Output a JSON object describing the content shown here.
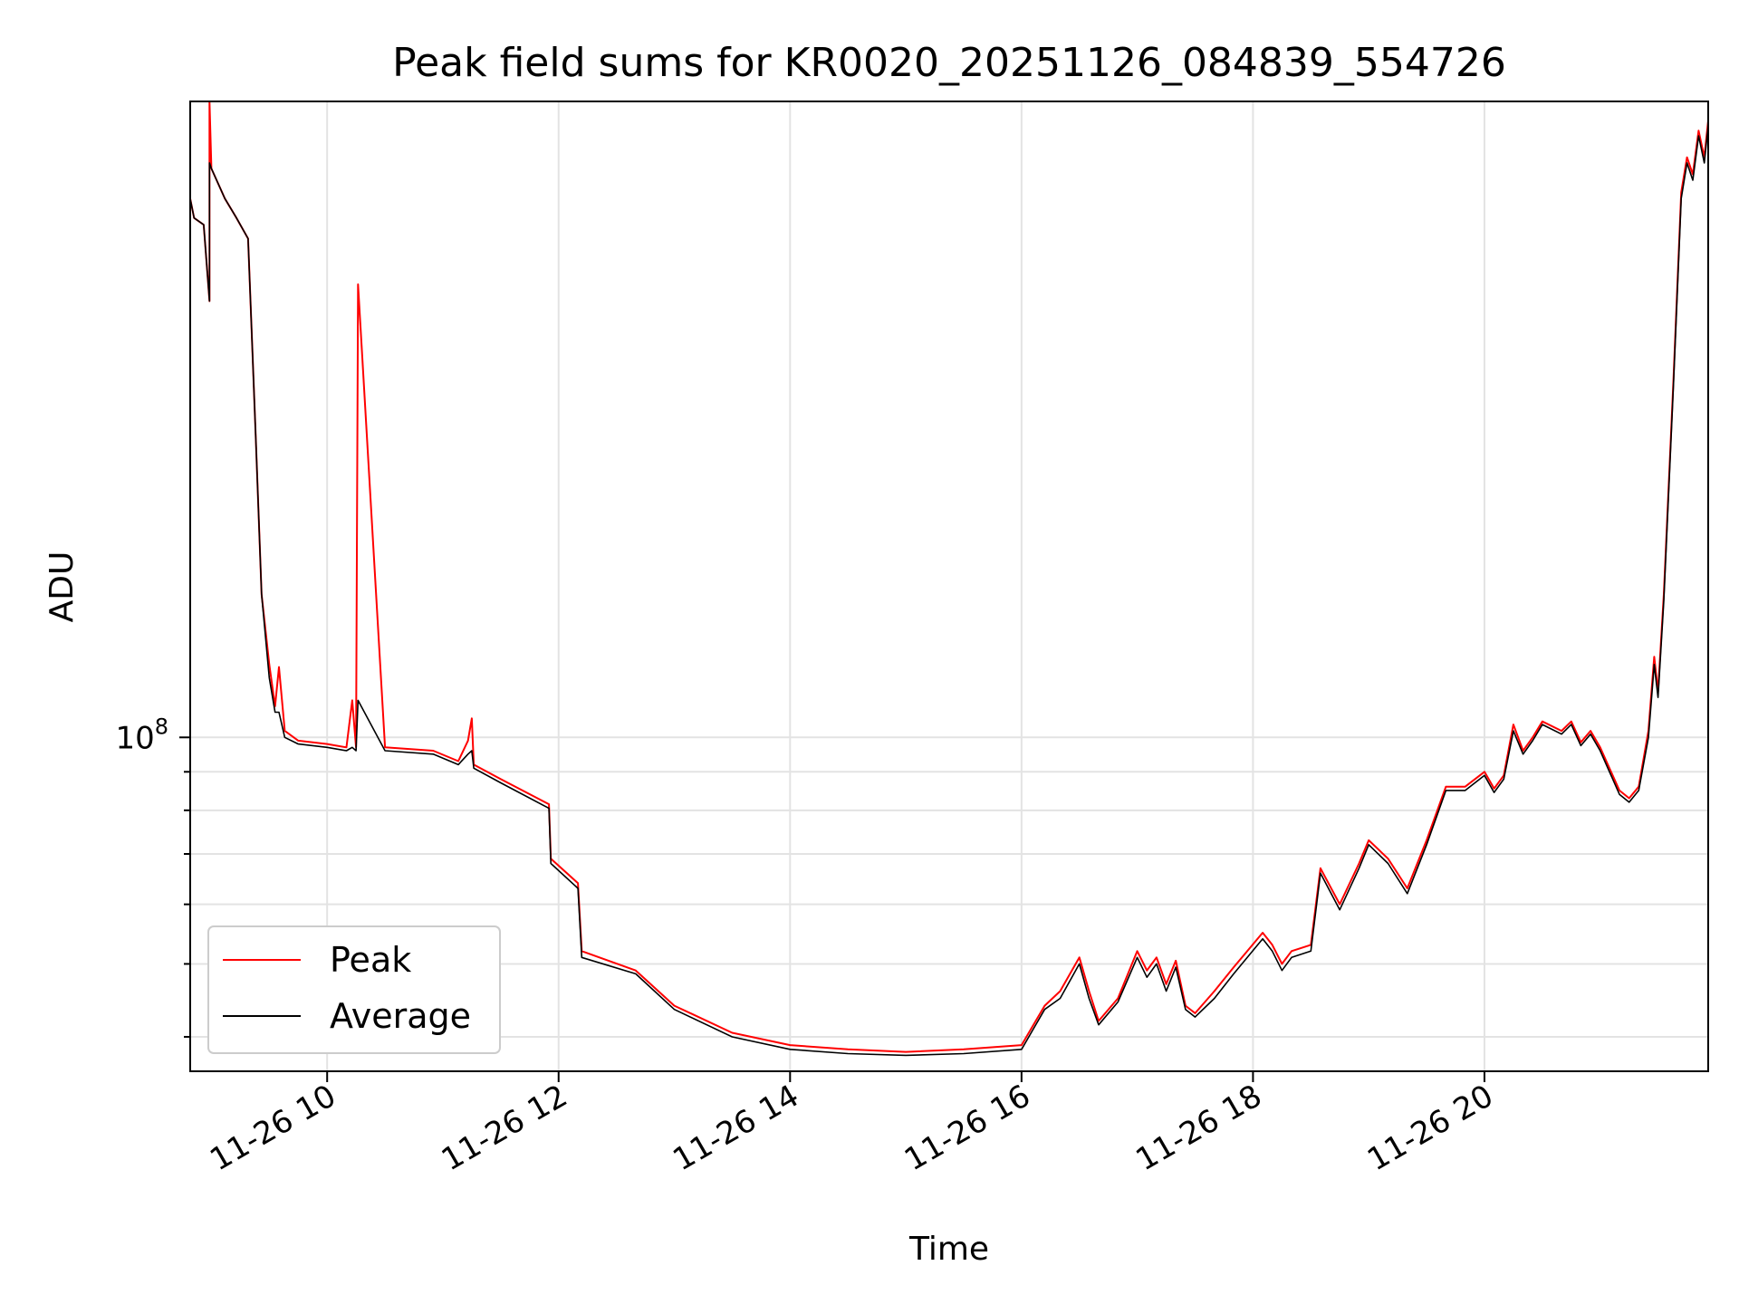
{
  "chart_data": {
    "type": "line",
    "title": "Peak field sums for KR0020_20251126_084839_554726",
    "xlabel": "Time",
    "ylabel": "ADU",
    "y_scale": "log",
    "x_range": [
      "2025-11-26 08:49",
      "2025-11-26 21:56"
    ],
    "y_range": [
      36000000,
      700000000
    ],
    "grid": true,
    "legend_position": "lower-left",
    "x_ticks": [
      "11-26 10",
      "11-26 12",
      "11-26 14",
      "11-26 16",
      "11-26 18",
      "11-26 20"
    ],
    "x_tick_times": [
      "2025-11-26 10:00",
      "2025-11-26 12:00",
      "2025-11-26 14:00",
      "2025-11-26 16:00",
      "2025-11-26 18:00",
      "2025-11-26 20:00"
    ],
    "y_ticks_major": [
      100000000
    ],
    "y_tick_labels": {
      "base": "10",
      "exponent": "8"
    },
    "y_ticks_minor": [
      40000000,
      50000000,
      60000000,
      70000000,
      80000000,
      90000000
    ],
    "series": [
      {
        "name": "Peak",
        "color": "#ff0000",
        "x": [
          "2025-11-26 08:49",
          "2025-11-26 08:51",
          "2025-11-26 08:56",
          "2025-11-26 08:59",
          "2025-11-26 08:59",
          "2025-11-26 09:00",
          "2025-11-26 09:07",
          "2025-11-26 09:13",
          "2025-11-26 09:19",
          "2025-11-26 09:23",
          "2025-11-26 09:26",
          "2025-11-26 09:30",
          "2025-11-26 09:33",
          "2025-11-26 09:35",
          "2025-11-26 09:38",
          "2025-11-26 09:45",
          "2025-11-26 10:00",
          "2025-11-26 10:10",
          "2025-11-26 10:13",
          "2025-11-26 10:15",
          "2025-11-26 10:16",
          "2025-11-26 10:30",
          "2025-11-26 10:55",
          "2025-11-26 11:08",
          "2025-11-26 11:13",
          "2025-11-26 11:15",
          "2025-11-26 11:16",
          "2025-11-26 11:30",
          "2025-11-26 11:55",
          "2025-11-26 11:56",
          "2025-11-26 12:10",
          "2025-11-26 12:12",
          "2025-11-26 12:40",
          "2025-11-26 13:00",
          "2025-11-26 13:30",
          "2025-11-26 14:00",
          "2025-11-26 14:30",
          "2025-11-26 15:00",
          "2025-11-26 15:30",
          "2025-11-26 16:00",
          "2025-11-26 16:12",
          "2025-11-26 16:20",
          "2025-11-26 16:30",
          "2025-11-26 16:35",
          "2025-11-26 16:40",
          "2025-11-26 16:50",
          "2025-11-26 17:00",
          "2025-11-26 17:05",
          "2025-11-26 17:10",
          "2025-11-26 17:15",
          "2025-11-26 17:20",
          "2025-11-26 17:25",
          "2025-11-26 17:30",
          "2025-11-26 17:40",
          "2025-11-26 17:50",
          "2025-11-26 18:05",
          "2025-11-26 18:10",
          "2025-11-26 18:15",
          "2025-11-26 18:20",
          "2025-11-26 18:30",
          "2025-11-26 18:35",
          "2025-11-26 18:45",
          "2025-11-26 18:55",
          "2025-11-26 19:00",
          "2025-11-26 19:10",
          "2025-11-26 19:20",
          "2025-11-26 19:30",
          "2025-11-26 19:40",
          "2025-11-26 19:50",
          "2025-11-26 20:00",
          "2025-11-26 20:05",
          "2025-11-26 20:10",
          "2025-11-26 20:15",
          "2025-11-26 20:20",
          "2025-11-26 20:25",
          "2025-11-26 20:30",
          "2025-11-26 20:40",
          "2025-11-26 20:45",
          "2025-11-26 20:50",
          "2025-11-26 20:55",
          "2025-11-26 21:00",
          "2025-11-26 21:10",
          "2025-11-26 21:15",
          "2025-11-26 21:20",
          "2025-11-26 21:25",
          "2025-11-26 21:28",
          "2025-11-26 21:30",
          "2025-11-26 21:33",
          "2025-11-26 21:38",
          "2025-11-26 21:42",
          "2025-11-26 21:45",
          "2025-11-26 21:48",
          "2025-11-26 21:51",
          "2025-11-26 21:54",
          "2025-11-26 21:56"
        ],
        "y": [
          520000000.0,
          490000000.0,
          480000000.0,
          380000000.0,
          700000000.0,
          570000000.0,
          520000000.0,
          490000000.0,
          460000000.0,
          250000000.0,
          155000000.0,
          125000000.0,
          110000000.0,
          124000000.0,
          102000000.0,
          99000000.0,
          98000000.0,
          97000000.0,
          112000000.0,
          97000000.0,
          400000000.0,
          97000000.0,
          96000000.0,
          93000000.0,
          99000000.0,
          106000000.0,
          92000000.0,
          88000000.0,
          81500000.0,
          69000000.0,
          64000000.0,
          52000000.0,
          49000000.0,
          44000000.0,
          40500000.0,
          39000000.0,
          38500000.0,
          38200000.0,
          38500000.0,
          39000000.0,
          44000000.0,
          46000000.0,
          51000000.0,
          46000000.0,
          42000000.0,
          45000000.0,
          52000000.0,
          49000000.0,
          51000000.0,
          47000000.0,
          50500000.0,
          44000000.0,
          43000000.0,
          46000000.0,
          49500000.0,
          55000000.0,
          53000000.0,
          50000000.0,
          52000000.0,
          53000000.0,
          67000000.0,
          60000000.0,
          68000000.0,
          73000000.0,
          69000000.0,
          63000000.0,
          73000000.0,
          86000000.0,
          86000000.0,
          90000000.0,
          85500000.0,
          89000000.0,
          104000000.0,
          96000000.0,
          100000000.0,
          105000000.0,
          102000000.0,
          105000000.0,
          98500000.0,
          102000000.0,
          97000000.0,
          85000000.0,
          83000000.0,
          86000000.0,
          102000000.0,
          128000000.0,
          115000000.0,
          155000000.0,
          300000000.0,
          530000000.0,
          590000000.0,
          560000000.0,
          640000000.0,
          590000000.0,
          660000000.0
        ]
      },
      {
        "name": "Average",
        "color": "#000000",
        "x": [
          "2025-11-26 08:49",
          "2025-11-26 08:51",
          "2025-11-26 08:56",
          "2025-11-26 08:59",
          "2025-11-26 08:59",
          "2025-11-26 09:00",
          "2025-11-26 09:07",
          "2025-11-26 09:13",
          "2025-11-26 09:19",
          "2025-11-26 09:23",
          "2025-11-26 09:26",
          "2025-11-26 09:30",
          "2025-11-26 09:33",
          "2025-11-26 09:35",
          "2025-11-26 09:38",
          "2025-11-26 09:45",
          "2025-11-26 10:00",
          "2025-11-26 10:10",
          "2025-11-26 10:13",
          "2025-11-26 10:15",
          "2025-11-26 10:16",
          "2025-11-26 10:30",
          "2025-11-26 10:55",
          "2025-11-26 11:08",
          "2025-11-26 11:13",
          "2025-11-26 11:15",
          "2025-11-26 11:16",
          "2025-11-26 11:30",
          "2025-11-26 11:55",
          "2025-11-26 11:56",
          "2025-11-26 12:10",
          "2025-11-26 12:12",
          "2025-11-26 12:40",
          "2025-11-26 13:00",
          "2025-11-26 13:30",
          "2025-11-26 14:00",
          "2025-11-26 14:30",
          "2025-11-26 15:00",
          "2025-11-26 15:30",
          "2025-11-26 16:00",
          "2025-11-26 16:12",
          "2025-11-26 16:20",
          "2025-11-26 16:30",
          "2025-11-26 16:35",
          "2025-11-26 16:40",
          "2025-11-26 16:50",
          "2025-11-26 17:00",
          "2025-11-26 17:05",
          "2025-11-26 17:10",
          "2025-11-26 17:15",
          "2025-11-26 17:20",
          "2025-11-26 17:25",
          "2025-11-26 17:30",
          "2025-11-26 17:40",
          "2025-11-26 17:50",
          "2025-11-26 18:05",
          "2025-11-26 18:10",
          "2025-11-26 18:15",
          "2025-11-26 18:20",
          "2025-11-26 18:30",
          "2025-11-26 18:35",
          "2025-11-26 18:45",
          "2025-11-26 18:55",
          "2025-11-26 19:00",
          "2025-11-26 19:10",
          "2025-11-26 19:20",
          "2025-11-26 19:30",
          "2025-11-26 19:40",
          "2025-11-26 19:50",
          "2025-11-26 20:00",
          "2025-11-26 20:05",
          "2025-11-26 20:10",
          "2025-11-26 20:15",
          "2025-11-26 20:20",
          "2025-11-26 20:25",
          "2025-11-26 20:30",
          "2025-11-26 20:40",
          "2025-11-26 20:45",
          "2025-11-26 20:50",
          "2025-11-26 20:55",
          "2025-11-26 21:00",
          "2025-11-26 21:10",
          "2025-11-26 21:15",
          "2025-11-26 21:20",
          "2025-11-26 21:25",
          "2025-11-26 21:28",
          "2025-11-26 21:30",
          "2025-11-26 21:33",
          "2025-11-26 21:38",
          "2025-11-26 21:42",
          "2025-11-26 21:45",
          "2025-11-26 21:48",
          "2025-11-26 21:51",
          "2025-11-26 21:54",
          "2025-11-26 21:56"
        ],
        "y": [
          520000000.0,
          490000000.0,
          480000000.0,
          380000000.0,
          580000000.0,
          570000000.0,
          520000000.0,
          490000000.0,
          460000000.0,
          250000000.0,
          155000000.0,
          120000000.0,
          108000000.0,
          108000000.0,
          100000000.0,
          98000000.0,
          97000000.0,
          96000000.0,
          97000000.0,
          96000000.0,
          112000000.0,
          96000000.0,
          95000000.0,
          92000000.0,
          95000000.0,
          96000000.0,
          91000000.0,
          87000000.0,
          80500000.0,
          68000000.0,
          63000000.0,
          51000000.0,
          48500000.0,
          43500000.0,
          40000000.0,
          38500000.0,
          38000000.0,
          37800000.0,
          38000000.0,
          38500000.0,
          43500000.0,
          45000000.0,
          50000000.0,
          45000000.0,
          41500000.0,
          44500000.0,
          51000000.0,
          48000000.0,
          50000000.0,
          46000000.0,
          49500000.0,
          43500000.0,
          42500000.0,
          45000000.0,
          48500000.0,
          54000000.0,
          52000000.0,
          49000000.0,
          51000000.0,
          52000000.0,
          66000000.0,
          59000000.0,
          67000000.0,
          72000000.0,
          68000000.0,
          62000000.0,
          72000000.0,
          85000000.0,
          85000000.0,
          89000000.0,
          84500000.0,
          88000000.0,
          102000000.0,
          95000000.0,
          99000000.0,
          104000000.0,
          101000000.0,
          104000000.0,
          97500000.0,
          101000000.0,
          96000000.0,
          84000000.0,
          82000000.0,
          85000000.0,
          100000000.0,
          125000000.0,
          113000000.0,
          152000000.0,
          295000000.0,
          520000000.0,
          580000000.0,
          550000000.0,
          630000000.0,
          580000000.0,
          650000000.0
        ]
      }
    ]
  }
}
